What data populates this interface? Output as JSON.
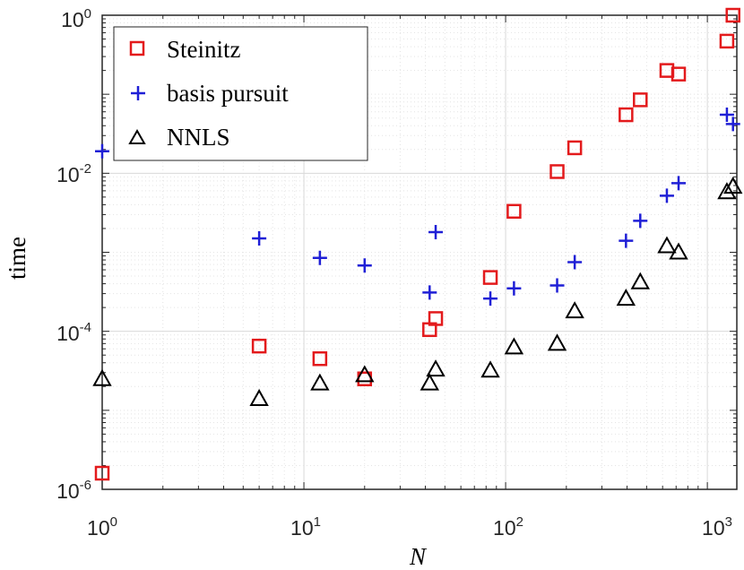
{
  "chart_data": {
    "type": "scatter",
    "xscale": "log",
    "yscale": "log",
    "xlabel": "N",
    "ylabel": "time",
    "xlim": [
      1,
      1400
    ],
    "ylim": [
      1e-06,
      1
    ],
    "grid": true,
    "legend_position": "top-left",
    "x_ticks": [
      {
        "base": "10",
        "exp": "0"
      },
      {
        "base": "10",
        "exp": "1"
      },
      {
        "base": "10",
        "exp": "2"
      },
      {
        "base": "10",
        "exp": "3"
      }
    ],
    "y_ticks": [
      {
        "base": "10",
        "exp": "-6"
      },
      {
        "base": "10",
        "exp": "-4"
      },
      {
        "base": "10",
        "exp": "-2"
      },
      {
        "base": "10",
        "exp": "0"
      }
    ],
    "series": [
      {
        "name": "Steinitz",
        "marker": "square",
        "color": "#e31a1c",
        "points": [
          [
            1,
            1.6e-06
          ],
          [
            6,
            6.5e-05
          ],
          [
            12,
            4.5e-05
          ],
          [
            20,
            2.5e-05
          ],
          [
            42,
            0.000105
          ],
          [
            45,
            0.000145
          ],
          [
            84,
            0.00048
          ],
          [
            110,
            0.0033
          ],
          [
            180,
            0.0105
          ],
          [
            220,
            0.021
          ],
          [
            395,
            0.055
          ],
          [
            465,
            0.085
          ],
          [
            630,
            0.2
          ],
          [
            720,
            0.18
          ],
          [
            1250,
            0.47
          ],
          [
            1340,
            1.0
          ]
        ]
      },
      {
        "name": "basis pursuit",
        "marker": "plus",
        "color": "#1f1fd6",
        "points": [
          [
            1,
            0.019
          ],
          [
            6,
            0.0015
          ],
          [
            12,
            0.00085
          ],
          [
            20,
            0.00068
          ],
          [
            42,
            0.00031
          ],
          [
            45,
            0.0018
          ],
          [
            84,
            0.00026
          ],
          [
            110,
            0.00035
          ],
          [
            180,
            0.00038
          ],
          [
            220,
            0.00075
          ],
          [
            395,
            0.0014
          ],
          [
            465,
            0.0025
          ],
          [
            630,
            0.0052
          ],
          [
            720,
            0.0075
          ],
          [
            1250,
            0.055
          ],
          [
            1340,
            0.042
          ]
        ]
      },
      {
        "name": "NNLS",
        "marker": "triangle",
        "color": "#000000",
        "points": [
          [
            1,
            2.5e-05
          ],
          [
            6,
            1.4e-05
          ],
          [
            12,
            2.2e-05
          ],
          [
            20,
            2.8e-05
          ],
          [
            42,
            2.2e-05
          ],
          [
            45,
            3.3e-05
          ],
          [
            84,
            3.2e-05
          ],
          [
            110,
            6.3e-05
          ],
          [
            180,
            7e-05
          ],
          [
            220,
            0.00018
          ],
          [
            395,
            0.00026
          ],
          [
            465,
            0.00042
          ],
          [
            630,
            0.0012
          ],
          [
            720,
            0.001
          ],
          [
            1250,
            0.0058
          ],
          [
            1340,
            0.0068
          ]
        ]
      }
    ]
  }
}
